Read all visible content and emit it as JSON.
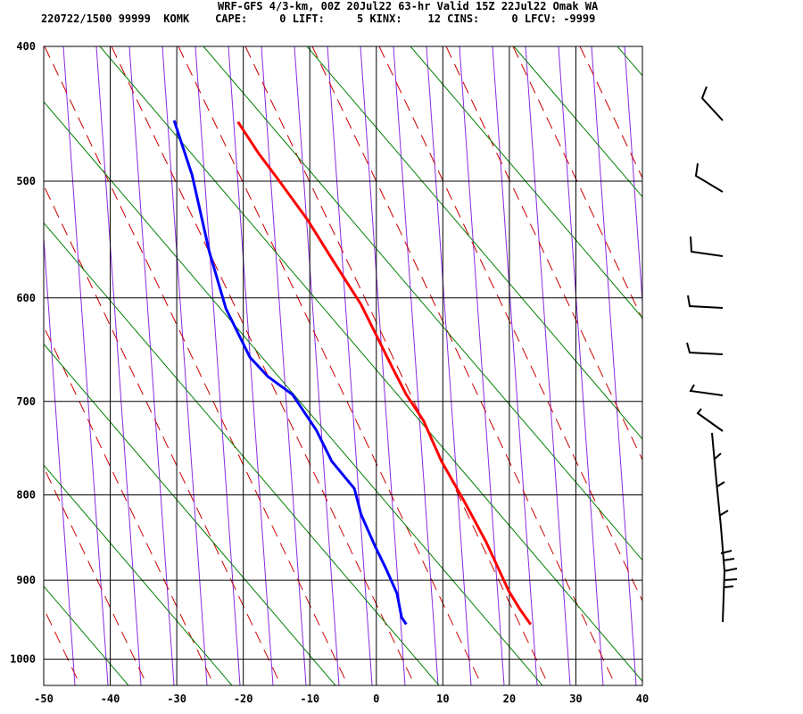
{
  "header": {
    "title": "WRF-GFS 4/3-km, 00Z 20Jul22 63-hr Valid 15Z 22Jul22 Omak WA",
    "info_line": "220722/1500 99999  KOMK    CAPE:     0 LIFT:     5 KINX:    12 CINS:     0 LFCV: -9999"
  },
  "chart_data": {
    "type": "line",
    "subtype": "skew-T log-p sounding",
    "title": "WRF-GFS 4/3-km, 00Z 20Jul22 63-hr Valid 15Z 22Jul22 Omak WA",
    "x_ticks": [
      "-50",
      "-40",
      "-30",
      "-20",
      "-10",
      "0",
      "10",
      "20",
      "30",
      "40"
    ],
    "xlim": [
      -50,
      40
    ],
    "y_ticks": [
      "400",
      "500",
      "600",
      "700",
      "800",
      "900",
      "1000"
    ],
    "ylim_pressure_hpa": [
      400,
      1050
    ],
    "grid": true,
    "colors": {
      "temperature": "#ff0000",
      "dewpoint": "#0000ff",
      "isotherm_green": "#008000",
      "dashed_red": "#cc0000",
      "purple": "#8a2be2",
      "grid": "#000000"
    },
    "series": [
      {
        "key": "temperature",
        "points": [
          [
            454,
            -20.8
          ],
          [
            478,
            -17.7
          ],
          [
            499,
            -14.7
          ],
          [
            532,
            -10.3
          ],
          [
            563,
            -6.9
          ],
          [
            606,
            -2.3
          ],
          [
            666,
            2.4
          ],
          [
            693,
            4.5
          ],
          [
            720,
            7.1
          ],
          [
            763,
            9.8
          ],
          [
            807,
            13.2
          ],
          [
            854,
            16.5
          ],
          [
            913,
            19.9
          ],
          [
            936,
            21.6
          ],
          [
            955,
            23.2
          ]
        ]
      },
      {
        "key": "dewpoint",
        "points": [
          [
            453,
            -30.4
          ],
          [
            495,
            -27.7
          ],
          [
            559,
            -25.1
          ],
          [
            610,
            -22.6
          ],
          [
            656,
            -19.0
          ],
          [
            675,
            -16.3
          ],
          [
            693,
            -12.6
          ],
          [
            730,
            -9.0
          ],
          [
            763,
            -6.7
          ],
          [
            793,
            -3.3
          ],
          [
            822,
            -2.3
          ],
          [
            859,
            -0.2
          ],
          [
            885,
            1.4
          ],
          [
            916,
            3.1
          ],
          [
            946,
            3.8
          ],
          [
            955,
            4.5
          ]
        ]
      }
    ]
  }
}
